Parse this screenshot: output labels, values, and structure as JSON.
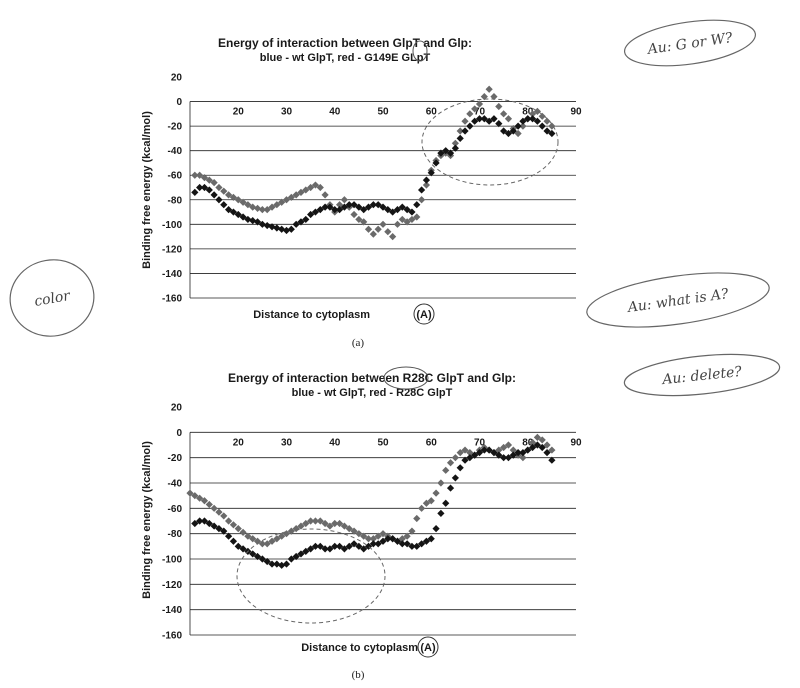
{
  "chart_data": [
    {
      "type": "scatter",
      "title": "Energy of interaction between GlpT and Glp:",
      "subtitle": "blue - wt GlpT, red - G149E GLpT",
      "xlabel": "Distance to cytoplasm",
      "xlabel_suffix": "(A)",
      "ylabel": "Binding free energy (kcal/mol)",
      "caption": "(a)",
      "xlim": [
        10,
        90
      ],
      "ylim": [
        -160,
        20
      ],
      "x_ticks": [
        20,
        30,
        40,
        50,
        60,
        70,
        80,
        90
      ],
      "y_ticks": [
        20,
        0,
        -20,
        -40,
        -60,
        -80,
        -100,
        -120,
        -140,
        -160
      ],
      "grid": true,
      "series": [
        {
          "color": "#6a6a6a",
          "x": [
            11,
            12,
            13,
            14,
            15,
            16,
            17,
            18,
            19,
            20,
            21,
            22,
            23,
            24,
            25,
            26,
            27,
            28,
            29,
            30,
            31,
            32,
            33,
            34,
            35,
            36,
            37,
            38,
            39,
            40,
            41,
            42,
            43,
            44,
            45,
            46,
            47,
            48,
            49,
            50,
            51,
            52,
            53,
            54,
            55,
            56,
            57,
            58,
            59,
            60,
            61,
            62,
            63,
            64,
            65,
            66,
            67,
            68,
            69,
            70,
            71,
            72,
            73,
            74,
            75,
            76,
            77,
            78,
            79,
            80,
            81,
            82,
            83,
            84,
            85
          ],
          "values": [
            -60,
            -60,
            -62,
            -64,
            -66,
            -70,
            -73,
            -76,
            -78,
            -80,
            -82,
            -84,
            -86,
            -87,
            -88,
            -88,
            -86,
            -84,
            -82,
            -80,
            -78,
            -76,
            -74,
            -72,
            -70,
            -68,
            -70,
            -76,
            -84,
            -90,
            -84,
            -80,
            -86,
            -92,
            -96,
            -98,
            -104,
            -108,
            -104,
            -100,
            -106,
            -110,
            -100,
            -96,
            -98,
            -96,
            -94,
            -80,
            -68,
            -56,
            -48,
            -44,
            -42,
            -44,
            -34,
            -24,
            -16,
            -10,
            -6,
            -2,
            4,
            10,
            4,
            -4,
            -10,
            -14,
            -22,
            -26,
            -20,
            -14,
            -10,
            -8,
            -12,
            -16,
            -20
          ]
        },
        {
          "color": "#141414",
          "x": [
            11,
            12,
            13,
            14,
            15,
            16,
            17,
            18,
            19,
            20,
            21,
            22,
            23,
            24,
            25,
            26,
            27,
            28,
            29,
            30,
            31,
            32,
            33,
            34,
            35,
            36,
            37,
            38,
            39,
            40,
            41,
            42,
            43,
            44,
            45,
            46,
            47,
            48,
            49,
            50,
            51,
            52,
            53,
            54,
            55,
            56,
            57,
            58,
            59,
            60,
            61,
            62,
            63,
            64,
            65,
            66,
            67,
            68,
            69,
            70,
            71,
            72,
            73,
            74,
            75,
            76,
            77,
            78,
            79,
            80,
            81,
            82,
            83,
            84,
            85
          ],
          "values": [
            -74,
            -70,
            -70,
            -72,
            -76,
            -80,
            -84,
            -88,
            -90,
            -92,
            -94,
            -96,
            -97,
            -98,
            -100,
            -101,
            -102,
            -103,
            -104,
            -105,
            -104,
            -100,
            -98,
            -96,
            -92,
            -90,
            -88,
            -86,
            -86,
            -88,
            -88,
            -86,
            -84,
            -84,
            -86,
            -88,
            -86,
            -84,
            -84,
            -86,
            -88,
            -90,
            -88,
            -86,
            -88,
            -90,
            -84,
            -72,
            -64,
            -58,
            -50,
            -42,
            -40,
            -42,
            -38,
            -30,
            -24,
            -20,
            -16,
            -14,
            -14,
            -16,
            -14,
            -18,
            -24,
            -26,
            -24,
            -20,
            -16,
            -14,
            -14,
            -16,
            -20,
            -24,
            -26
          ]
        }
      ]
    },
    {
      "type": "scatter",
      "title": "Energy of interaction between R28C GlpT and Glp:",
      "subtitle": "blue - wt GlpT, red - R28C GlpT",
      "xlabel": "Distance to cytoplasm",
      "xlabel_suffix": "(A)",
      "ylabel": "Binding free energy (kcal/mol)",
      "caption": "(b)",
      "xlim": [
        10,
        90
      ],
      "ylim": [
        -160,
        20
      ],
      "x_ticks": [
        20,
        30,
        40,
        50,
        60,
        70,
        80,
        90
      ],
      "y_ticks": [
        20,
        0,
        -20,
        -40,
        -60,
        -80,
        -100,
        -120,
        -140,
        -160
      ],
      "grid": true,
      "series": [
        {
          "color": "#6a6a6a",
          "x": [
            10,
            11,
            12,
            13,
            14,
            15,
            16,
            17,
            18,
            19,
            20,
            21,
            22,
            23,
            24,
            25,
            26,
            27,
            28,
            29,
            30,
            31,
            32,
            33,
            34,
            35,
            36,
            37,
            38,
            39,
            40,
            41,
            42,
            43,
            44,
            45,
            46,
            47,
            48,
            49,
            50,
            51,
            52,
            53,
            54,
            55,
            56,
            57,
            58,
            59,
            60,
            61,
            62,
            63,
            64,
            65,
            66,
            67,
            68,
            69,
            70,
            71,
            72,
            73,
            74,
            75,
            76,
            77,
            78,
            79,
            80,
            81,
            82,
            83,
            84,
            85
          ],
          "values": [
            -48,
            -50,
            -52,
            -54,
            -57,
            -60,
            -63,
            -66,
            -70,
            -73,
            -76,
            -79,
            -82,
            -84,
            -86,
            -88,
            -88,
            -86,
            -84,
            -82,
            -80,
            -78,
            -76,
            -74,
            -72,
            -70,
            -70,
            -70,
            -72,
            -74,
            -72,
            -72,
            -74,
            -76,
            -78,
            -80,
            -82,
            -84,
            -84,
            -82,
            -80,
            -82,
            -84,
            -86,
            -84,
            -82,
            -78,
            -68,
            -60,
            -56,
            -54,
            -48,
            -40,
            -30,
            -24,
            -20,
            -16,
            -14,
            -16,
            -18,
            -14,
            -12,
            -14,
            -16,
            -14,
            -12,
            -10,
            -14,
            -18,
            -20,
            -14,
            -8,
            -4,
            -6,
            -10,
            -14
          ]
        },
        {
          "color": "#141414",
          "x": [
            11,
            12,
            13,
            14,
            15,
            16,
            17,
            18,
            19,
            20,
            21,
            22,
            23,
            24,
            25,
            26,
            27,
            28,
            29,
            30,
            31,
            32,
            33,
            34,
            35,
            36,
            37,
            38,
            39,
            40,
            41,
            42,
            43,
            44,
            45,
            46,
            47,
            48,
            49,
            50,
            51,
            52,
            53,
            54,
            55,
            56,
            57,
            58,
            59,
            60,
            61,
            62,
            63,
            64,
            65,
            66,
            67,
            68,
            69,
            70,
            71,
            72,
            73,
            74,
            75,
            76,
            77,
            78,
            79,
            80,
            81,
            82,
            83,
            84,
            85
          ],
          "values": [
            -72,
            -70,
            -70,
            -72,
            -74,
            -76,
            -78,
            -82,
            -86,
            -90,
            -92,
            -94,
            -96,
            -98,
            -100,
            -102,
            -104,
            -104,
            -105,
            -104,
            -100,
            -98,
            -96,
            -94,
            -92,
            -90,
            -90,
            -92,
            -92,
            -90,
            -90,
            -92,
            -90,
            -88,
            -90,
            -92,
            -90,
            -88,
            -88,
            -86,
            -84,
            -84,
            -86,
            -88,
            -88,
            -90,
            -90,
            -88,
            -86,
            -84,
            -76,
            -64,
            -56,
            -44,
            -36,
            -28,
            -22,
            -20,
            -18,
            -16,
            -14,
            -14,
            -16,
            -18,
            -20,
            -20,
            -18,
            -16,
            -16,
            -14,
            -12,
            -10,
            -12,
            -16,
            -22
          ]
        }
      ]
    }
  ],
  "annotations": {
    "top_right": "Au: G or W?",
    "left": "color",
    "middle_right": "Au: what is A?",
    "lower_right": "Au: delete?"
  }
}
